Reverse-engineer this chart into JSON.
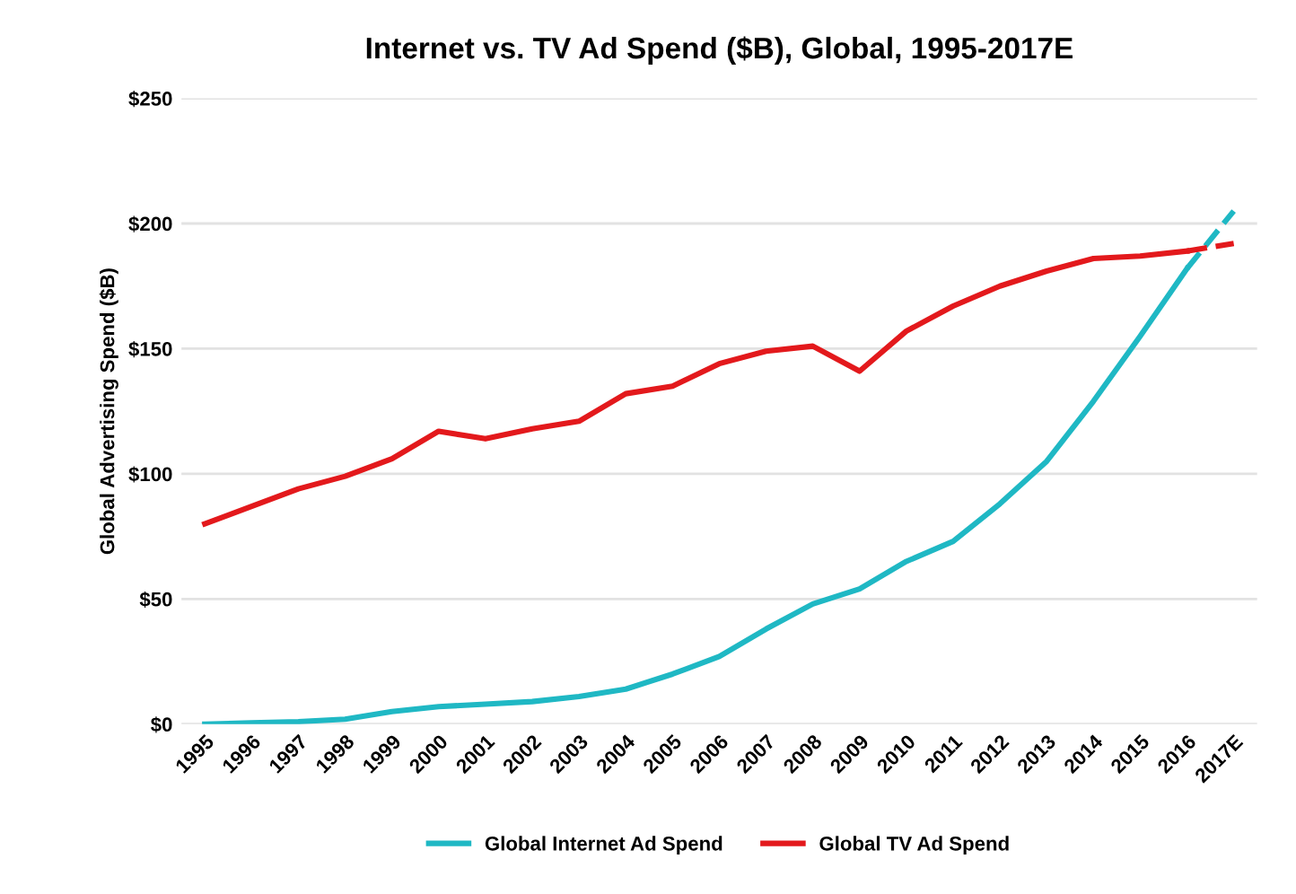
{
  "chart_data": {
    "type": "line",
    "title": "Internet vs. TV Ad Spend ($B), Global, 1995-2017E",
    "ylabel": "Global Advertising Spend ($B)",
    "categories": [
      "1995",
      "1996",
      "1997",
      "1998",
      "1999",
      "2000",
      "2001",
      "2002",
      "2003",
      "2004",
      "2005",
      "2006",
      "2007",
      "2008",
      "2009",
      "2010",
      "2011",
      "2012",
      "2013",
      "2014",
      "2015",
      "2016",
      "2017E"
    ],
    "series": [
      {
        "name": "Global Internet Ad Spend",
        "color": "#1fb8c4",
        "line_style": "solid",
        "values": [
          0,
          0.5,
          1,
          2,
          5,
          7,
          8,
          9,
          11,
          14,
          20,
          27,
          38,
          48,
          54,
          65,
          73,
          88,
          105,
          129,
          155,
          182,
          null
        ]
      },
      {
        "name": "Global TV Ad Spend",
        "color": "#e3191c",
        "line_style": "solid",
        "values": [
          80,
          87,
          94,
          99,
          106,
          117,
          114,
          118,
          121,
          132,
          135,
          144,
          149,
          151,
          141,
          157,
          167,
          175,
          181,
          186,
          187,
          189,
          null
        ]
      },
      {
        "color": "#1fb8c4",
        "line_style": "dashed",
        "values": [
          null,
          null,
          null,
          null,
          null,
          null,
          null,
          null,
          null,
          null,
          null,
          null,
          null,
          null,
          null,
          null,
          null,
          null,
          null,
          null,
          null,
          182,
          205
        ]
      },
      {
        "color": "#e3191c",
        "line_style": "dashed",
        "values": [
          null,
          null,
          null,
          null,
          null,
          null,
          null,
          null,
          null,
          null,
          null,
          null,
          null,
          null,
          null,
          null,
          null,
          null,
          null,
          null,
          null,
          189,
          192
        ]
      }
    ],
    "ylim": [
      0,
      250
    ],
    "yticks": [
      {
        "value": 0,
        "label": "$0"
      },
      {
        "value": 50,
        "label": "$50"
      },
      {
        "value": 100,
        "label": "$100"
      },
      {
        "value": 150,
        "label": "$150"
      },
      {
        "value": 200,
        "label": "$200"
      },
      {
        "value": 250,
        "label": "$250"
      }
    ],
    "grid": "y",
    "legend": "bottom",
    "marker": "none"
  }
}
